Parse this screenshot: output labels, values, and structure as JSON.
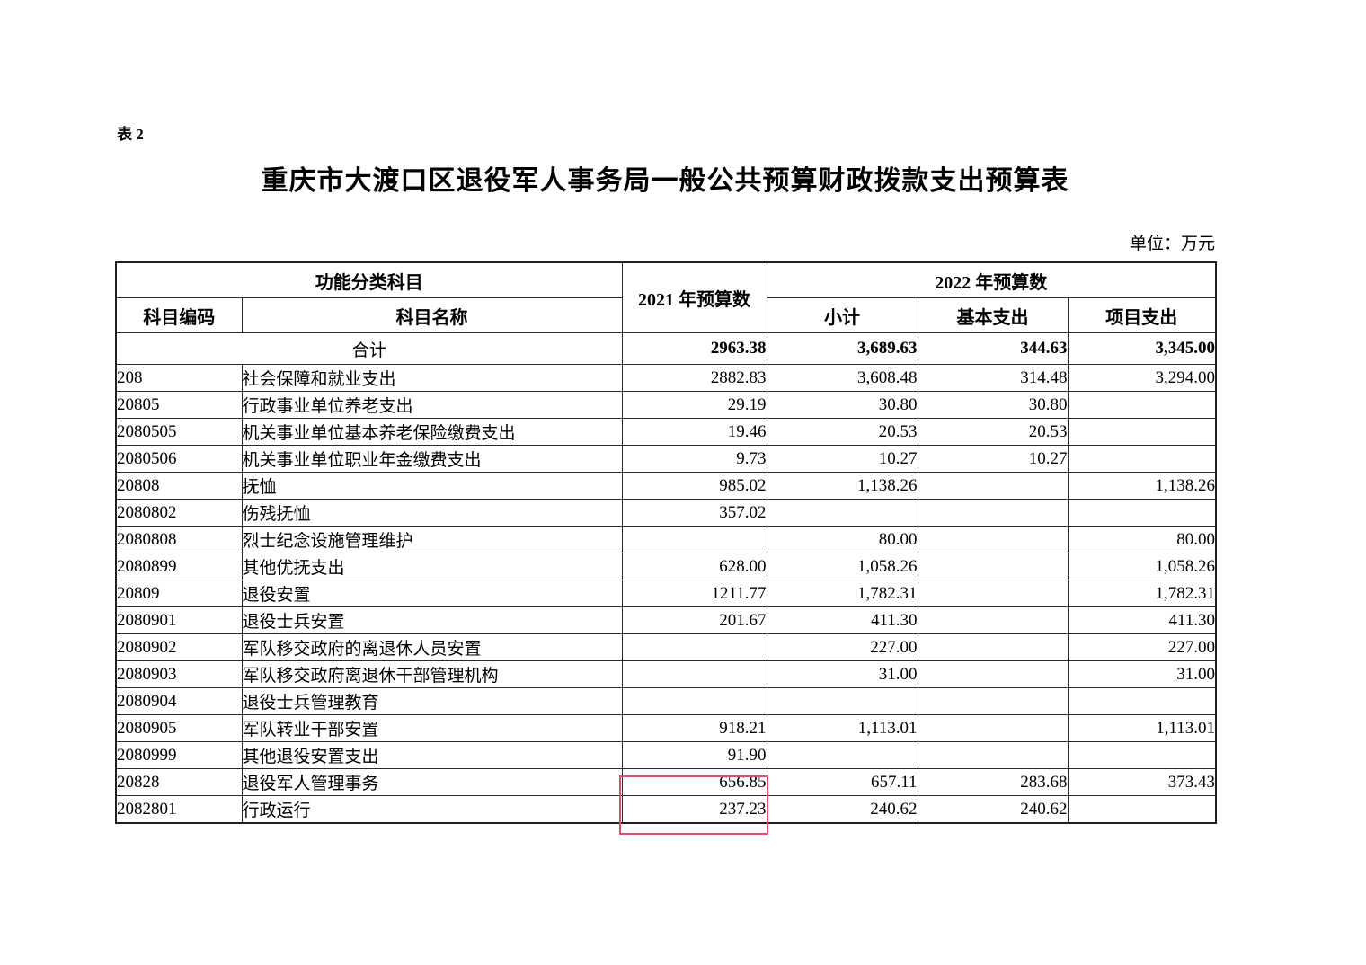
{
  "page": {
    "table_label": "表 2",
    "title": "重庆市大渡口区退役军人事务局一般公共预算财政拨款支出预算表",
    "unit_note": "单位：万元"
  },
  "table": {
    "header": {
      "func_group": "功能分类科目",
      "code": "科目编码",
      "name": "科目名称",
      "y2021": "2021 年预算数",
      "y2022_group": "2022 年预算数",
      "subtotal": "小计",
      "basic": "基本支出",
      "project": "项目支出"
    },
    "total_row": {
      "name": "合计",
      "v2021": "2963.38",
      "subtotal": "3,689.63",
      "basic": "344.63",
      "project": "3,345.00"
    },
    "rows": [
      {
        "code": "208",
        "name": "社会保障和就业支出",
        "v2021": "2882.83",
        "subtotal": "3,608.48",
        "basic": "314.48",
        "project": "3,294.00",
        "code_level": 1,
        "name_level": 1,
        "highlight": false
      },
      {
        "code": "20805",
        "name": "行政事业单位养老支出",
        "v2021": "29.19",
        "subtotal": "30.80",
        "basic": "30.80",
        "project": "",
        "code_level": 2,
        "name_level": 2,
        "highlight": false
      },
      {
        "code": "2080505",
        "name": "机关事业单位基本养老保险缴费支出",
        "v2021": "19.46",
        "subtotal": "20.53",
        "basic": "20.53",
        "project": "",
        "code_level": 3,
        "name_level": 3,
        "highlight": false
      },
      {
        "code": "2080506",
        "name": "机关事业单位职业年金缴费支出",
        "v2021": "9.73",
        "subtotal": "10.27",
        "basic": "10.27",
        "project": "",
        "code_level": 3,
        "name_level": 3,
        "highlight": false
      },
      {
        "code": "20808",
        "name": "抚恤",
        "v2021": "985.02",
        "subtotal": "1,138.26",
        "basic": "",
        "project": "1,138.26",
        "code_level": 2,
        "name_level": 2,
        "highlight": false
      },
      {
        "code": "2080802",
        "name": "伤残抚恤",
        "v2021": "357.02",
        "subtotal": "",
        "basic": "",
        "project": "",
        "code_level": 3,
        "name_level": 4,
        "highlight": false
      },
      {
        "code": "2080808",
        "name": "烈士纪念设施管理维护",
        "v2021": "",
        "subtotal": "80.00",
        "basic": "",
        "project": "80.00",
        "code_level": 3,
        "name_level": 3,
        "highlight": false
      },
      {
        "code": "2080899",
        "name": "其他优抚支出",
        "v2021": "628.00",
        "subtotal": "1,058.26",
        "basic": "",
        "project": "1,058.26",
        "code_level": 3,
        "name_level": 3,
        "highlight": false
      },
      {
        "code": "20809",
        "name": "退役安置",
        "v2021": "1211.77",
        "subtotal": "1,782.31",
        "basic": "",
        "project": "1,782.31",
        "code_level": 2,
        "name_level": 2,
        "highlight": false
      },
      {
        "code": "2080901",
        "name": "退役士兵安置",
        "v2021": "201.67",
        "subtotal": "411.30",
        "basic": "",
        "project": "411.30",
        "code_level": 3,
        "name_level": 3,
        "highlight": false
      },
      {
        "code": "2080902",
        "name": "军队移交政府的离退休人员安置",
        "v2021": "",
        "subtotal": "227.00",
        "basic": "",
        "project": "227.00",
        "code_level": 3,
        "name_level": 3,
        "highlight": false
      },
      {
        "code": "2080903",
        "name": "军队移交政府离退休干部管理机构",
        "v2021": "",
        "subtotal": "31.00",
        "basic": "",
        "project": "31.00",
        "code_level": 3,
        "name_level": 3,
        "highlight": false
      },
      {
        "code": "2080904",
        "name": "退役士兵管理教育",
        "v2021": "",
        "subtotal": "",
        "basic": "",
        "project": "",
        "code_level": 3,
        "name_level": 2,
        "highlight": false
      },
      {
        "code": "2080905",
        "name": "军队转业干部安置",
        "v2021": "918.21",
        "subtotal": "1,113.01",
        "basic": "",
        "project": "1,113.01",
        "code_level": 3,
        "name_level": 3,
        "highlight": false
      },
      {
        "code": "2080999",
        "name": "其他退役安置支出",
        "v2021": "91.90",
        "subtotal": "",
        "basic": "",
        "project": "",
        "code_level": 3,
        "name_level": 2,
        "highlight": false
      },
      {
        "code": "20828",
        "name": "退役军人管理事务",
        "v2021": "656.85",
        "subtotal": "657.11",
        "basic": "283.68",
        "project": "373.43",
        "code_level": 2,
        "name_level": 2,
        "highlight": true
      },
      {
        "code": "2082801",
        "name": "行政运行",
        "v2021": "237.23",
        "subtotal": "240.62",
        "basic": "240.62",
        "project": "",
        "code_level": 3,
        "name_level": 3,
        "highlight": true
      }
    ],
    "highlight_color": "#d9506e"
  }
}
